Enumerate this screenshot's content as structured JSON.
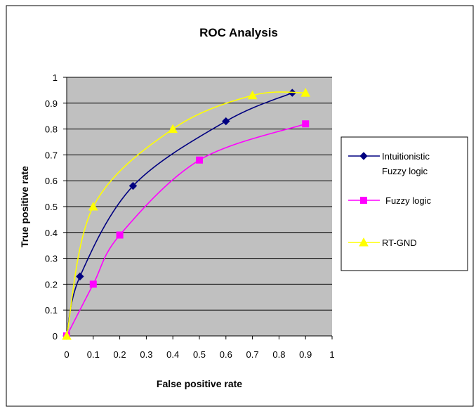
{
  "chart_data": {
    "type": "line",
    "title": "ROC Analysis",
    "xlabel": "False positive rate",
    "ylabel": "True positive rate",
    "xlim": [
      0,
      1
    ],
    "ylim": [
      0,
      1
    ],
    "xticks": [
      "0",
      "0.1",
      "0.2",
      "0.3",
      "0.4",
      "0.5",
      "0.6",
      "0.7",
      "0.8",
      "0.9",
      "1"
    ],
    "yticks": [
      "0",
      "0.1",
      "0.2",
      "0.3",
      "0.4",
      "0.5",
      "0.6",
      "0.7",
      "0.8",
      "0.9",
      "1"
    ],
    "grid": "horizontal",
    "plot_background": "#c0c0c0",
    "legend_position": "right",
    "series": [
      {
        "name": "Intuitionistic Fuzzy logic",
        "name_lines": [
          "Intuitionistic",
          "Fuzzy logic"
        ],
        "color": "#000080",
        "marker": "diamond",
        "x": [
          0,
          0.05,
          0.25,
          0.6,
          0.85
        ],
        "y": [
          0,
          0.23,
          0.58,
          0.83,
          0.94
        ]
      },
      {
        "name": "Fuzzy logic",
        "name_lines": [
          "Fuzzy logic"
        ],
        "color": "#ff00ff",
        "marker": "square",
        "x": [
          0,
          0.1,
          0.2,
          0.5,
          0.9
        ],
        "y": [
          0,
          0.2,
          0.39,
          0.68,
          0.82
        ]
      },
      {
        "name": "RT-GND",
        "name_lines": [
          "RT-GND"
        ],
        "color": "#ffff00",
        "marker": "triangle",
        "x": [
          0,
          0.1,
          0.4,
          0.7,
          0.9
        ],
        "y": [
          0,
          0.5,
          0.8,
          0.93,
          0.94
        ]
      }
    ]
  }
}
